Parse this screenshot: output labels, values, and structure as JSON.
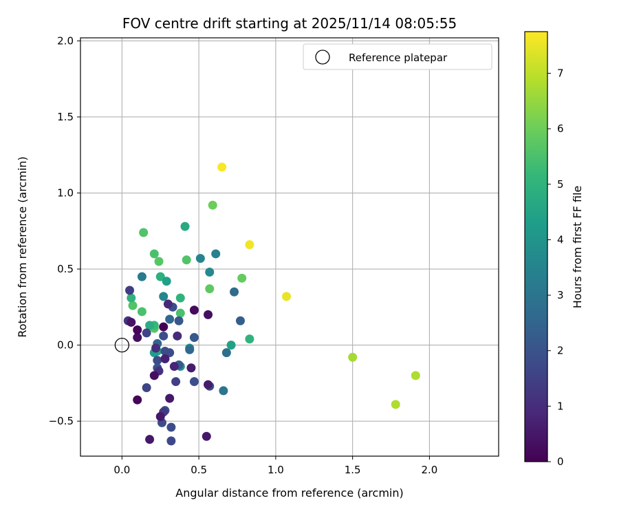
{
  "chart_data": {
    "type": "scatter",
    "title": "FOV centre drift starting at 2025/11/14 08:05:55",
    "xlabel": "Angular distance from reference (arcmin)",
    "ylabel": "Rotation from reference (arcmin)",
    "xlim": [
      -0.27,
      2.45
    ],
    "ylim": [
      -0.73,
      2.02
    ],
    "xticks": [
      0.0,
      0.5,
      1.0,
      1.5,
      2.0
    ],
    "xtick_labels": [
      "0.0",
      "0.5",
      "1.0",
      "1.5",
      "2.0"
    ],
    "yticks": [
      -0.5,
      0.0,
      0.5,
      1.0,
      1.5,
      2.0
    ],
    "ytick_labels": [
      "−0.5",
      "0.0",
      "0.5",
      "1.0",
      "1.5",
      "2.0"
    ],
    "grid": true,
    "legend": {
      "position": "top-right",
      "entries": [
        "Reference platepar"
      ]
    },
    "reference_point": {
      "x": 0.0,
      "y": 0.0,
      "label": "Reference platepar"
    },
    "colorbar": {
      "label": "Hours from first FF file",
      "min": 0.0,
      "max": 7.75,
      "ticks": [
        0,
        1,
        2,
        3,
        4,
        5,
        6,
        7
      ],
      "tick_labels": [
        "0",
        "1",
        "2",
        "3",
        "4",
        "5",
        "6",
        "7"
      ],
      "colormap": [
        "#440154",
        "#482878",
        "#3e4989",
        "#31688e",
        "#26828e",
        "#1f9e89",
        "#35b779",
        "#6ece58",
        "#b5de2b",
        "#fde725"
      ]
    },
    "points": [
      {
        "x": 0.65,
        "y": 1.17,
        "h": 7.7
      },
      {
        "x": 0.83,
        "y": 0.66,
        "h": 7.6
      },
      {
        "x": 1.07,
        "y": 0.32,
        "h": 7.5
      },
      {
        "x": 1.5,
        "y": -0.08,
        "h": 6.7
      },
      {
        "x": 1.78,
        "y": -0.39,
        "h": 6.8
      },
      {
        "x": 1.91,
        "y": -0.2,
        "h": 6.8
      },
      {
        "x": 0.59,
        "y": 0.92,
        "h": 6.0
      },
      {
        "x": 0.78,
        "y": 0.44,
        "h": 5.9
      },
      {
        "x": 0.57,
        "y": 0.37,
        "h": 5.8
      },
      {
        "x": 0.14,
        "y": 0.74,
        "h": 5.6
      },
      {
        "x": 0.21,
        "y": 0.6,
        "h": 5.5
      },
      {
        "x": 0.24,
        "y": 0.55,
        "h": 5.7
      },
      {
        "x": 0.42,
        "y": 0.56,
        "h": 5.6
      },
      {
        "x": 0.07,
        "y": 0.26,
        "h": 5.6
      },
      {
        "x": 0.13,
        "y": 0.22,
        "h": 5.5
      },
      {
        "x": 0.38,
        "y": 0.21,
        "h": 5.5
      },
      {
        "x": 0.21,
        "y": 0.11,
        "h": 5.7
      },
      {
        "x": 0.21,
        "y": 0.13,
        "h": 5.2
      },
      {
        "x": 0.06,
        "y": 0.31,
        "h": 5.0
      },
      {
        "x": 0.83,
        "y": 0.04,
        "h": 5.0
      },
      {
        "x": 0.38,
        "y": 0.31,
        "h": 5.0
      },
      {
        "x": 0.25,
        "y": 0.45,
        "h": 4.9
      },
      {
        "x": 0.41,
        "y": 0.78,
        "h": 4.7
      },
      {
        "x": 0.18,
        "y": 0.13,
        "h": 4.8
      },
      {
        "x": 0.29,
        "y": 0.42,
        "h": 4.4
      },
      {
        "x": 0.71,
        "y": 0.0,
        "h": 4.4
      },
      {
        "x": 0.23,
        "y": -0.04,
        "h": 4.6
      },
      {
        "x": 0.21,
        "y": -0.05,
        "h": 4.3
      },
      {
        "x": 0.38,
        "y": -0.14,
        "h": 4.0
      },
      {
        "x": 0.44,
        "y": -0.02,
        "h": 3.7
      },
      {
        "x": 0.57,
        "y": 0.48,
        "h": 3.7
      },
      {
        "x": 0.27,
        "y": 0.32,
        "h": 3.6
      },
      {
        "x": 0.51,
        "y": 0.57,
        "h": 3.5
      },
      {
        "x": 0.61,
        "y": 0.6,
        "h": 3.4
      },
      {
        "x": 0.13,
        "y": 0.45,
        "h": 3.2
      },
      {
        "x": 0.66,
        "y": -0.3,
        "h": 3.0
      },
      {
        "x": 0.68,
        "y": -0.05,
        "h": 2.8
      },
      {
        "x": 0.73,
        "y": 0.35,
        "h": 2.7
      },
      {
        "x": 0.44,
        "y": -0.03,
        "h": 2.6
      },
      {
        "x": 0.31,
        "y": 0.17,
        "h": 2.6
      },
      {
        "x": 0.23,
        "y": 0.01,
        "h": 2.5
      },
      {
        "x": 0.77,
        "y": 0.16,
        "h": 2.3
      },
      {
        "x": 0.47,
        "y": 0.05,
        "h": 2.1
      },
      {
        "x": 0.37,
        "y": 0.16,
        "h": 2.1
      },
      {
        "x": 0.37,
        "y": -0.13,
        "h": 2.2
      },
      {
        "x": 0.33,
        "y": 0.25,
        "h": 1.9
      },
      {
        "x": 0.27,
        "y": 0.06,
        "h": 1.9
      },
      {
        "x": 0.31,
        "y": -0.05,
        "h": 1.8
      },
      {
        "x": 0.28,
        "y": -0.04,
        "h": 1.8
      },
      {
        "x": 0.23,
        "y": -0.1,
        "h": 1.8
      },
      {
        "x": 0.23,
        "y": -0.15,
        "h": 2.0
      },
      {
        "x": 0.47,
        "y": -0.24,
        "h": 1.9
      },
      {
        "x": 0.57,
        "y": -0.27,
        "h": 1.8
      },
      {
        "x": 0.26,
        "y": -0.51,
        "h": 1.8
      },
      {
        "x": 0.28,
        "y": -0.43,
        "h": 1.8
      },
      {
        "x": 0.32,
        "y": -0.54,
        "h": 1.8
      },
      {
        "x": 0.32,
        "y": -0.63,
        "h": 1.7
      },
      {
        "x": 0.16,
        "y": -0.28,
        "h": 1.6
      },
      {
        "x": 0.16,
        "y": 0.08,
        "h": 1.6
      },
      {
        "x": 0.05,
        "y": 0.36,
        "h": 1.4
      },
      {
        "x": 0.35,
        "y": -0.24,
        "h": 1.5
      },
      {
        "x": 0.27,
        "y": -0.44,
        "h": 1.3
      },
      {
        "x": 0.04,
        "y": 0.16,
        "h": 1.2
      },
      {
        "x": 0.24,
        "y": -0.17,
        "h": 1.1
      },
      {
        "x": 0.22,
        "y": -0.02,
        "h": 1.0
      },
      {
        "x": 0.36,
        "y": 0.06,
        "h": 1.0
      },
      {
        "x": 0.3,
        "y": 0.27,
        "h": 0.9
      },
      {
        "x": 0.34,
        "y": -0.14,
        "h": 0.8
      },
      {
        "x": 0.28,
        "y": -0.09,
        "h": 0.7
      },
      {
        "x": 0.56,
        "y": -0.26,
        "h": 0.6
      },
      {
        "x": 0.45,
        "y": -0.15,
        "h": 0.6
      },
      {
        "x": 0.31,
        "y": -0.35,
        "h": 0.5
      },
      {
        "x": 0.25,
        "y": -0.47,
        "h": 0.5
      },
      {
        "x": 0.18,
        "y": -0.62,
        "h": 0.5
      },
      {
        "x": 0.55,
        "y": -0.6,
        "h": 0.5
      },
      {
        "x": 0.06,
        "y": 0.15,
        "h": 0.4
      },
      {
        "x": 0.21,
        "y": -0.2,
        "h": 0.3
      },
      {
        "x": 0.1,
        "y": 0.05,
        "h": 0.3
      },
      {
        "x": 0.56,
        "y": 0.2,
        "h": 0.3
      },
      {
        "x": 0.47,
        "y": 0.23,
        "h": 0.2
      },
      {
        "x": 0.1,
        "y": 0.1,
        "h": 0.1
      },
      {
        "x": 0.1,
        "y": -0.36,
        "h": 0.1
      },
      {
        "x": 0.27,
        "y": 0.12,
        "h": 0.0
      }
    ]
  }
}
